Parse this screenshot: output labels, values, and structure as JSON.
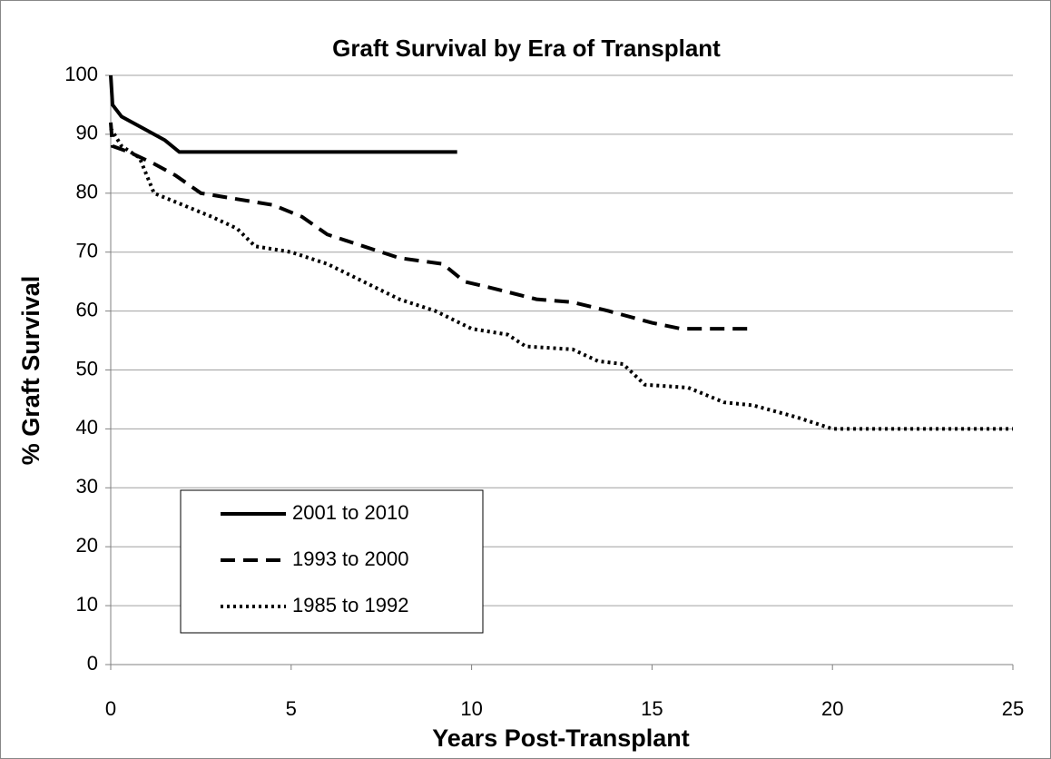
{
  "chart_data": {
    "type": "line",
    "title": "Graft Survival by Era of Transplant",
    "xlabel": "Years Post-Transplant",
    "ylabel": "% Graft Survival",
    "xlim": [
      0,
      25
    ],
    "xticks": [
      0,
      5,
      10,
      15,
      20,
      25
    ],
    "ylim": [
      0,
      100
    ],
    "yticks": [
      0,
      10,
      20,
      30,
      40,
      50,
      60,
      70,
      80,
      90,
      100
    ],
    "grid": true,
    "legend": "lower left",
    "series": [
      {
        "name": "2001 to 2010",
        "color": "#000000",
        "dash": "solid",
        "x": [
          0,
          0.05,
          0.3,
          0.9,
          1.5,
          1.9,
          9.6
        ],
        "values": [
          100,
          95,
          93,
          91,
          89,
          87,
          87
        ]
      },
      {
        "name": "1993 to 2000",
        "color": "#000000",
        "dash": "dashed",
        "x": [
          0,
          0.05,
          0.5,
          1.2,
          1.8,
          2.5,
          3.5,
          4.5,
          5.3,
          6,
          7,
          8,
          9.2,
          9.8,
          10.5,
          11.8,
          12.8,
          13.8,
          15,
          15.8,
          17.8
        ],
        "values": [
          92,
          88,
          87,
          85,
          83,
          80,
          79,
          78,
          76,
          73,
          71,
          69,
          68,
          65,
          64,
          62,
          61.5,
          60,
          58,
          57,
          57
        ]
      },
      {
        "name": "1985 to 1992",
        "color": "#000000",
        "dash": "dotted",
        "x": [
          0,
          0.3,
          0.8,
          1.2,
          2,
          2.8,
          3.5,
          4,
          5,
          6,
          7,
          8,
          9,
          10,
          11,
          11.5,
          12.8,
          13.5,
          14.2,
          14.8,
          16,
          17,
          17.8,
          19,
          20,
          25
        ],
        "values": [
          91,
          88,
          86,
          80,
          78,
          76,
          74,
          71,
          70,
          68,
          65,
          62,
          60,
          57,
          56,
          54,
          53.5,
          51.5,
          51,
          47.5,
          47,
          44.5,
          44,
          42,
          40,
          40
        ]
      }
    ]
  }
}
